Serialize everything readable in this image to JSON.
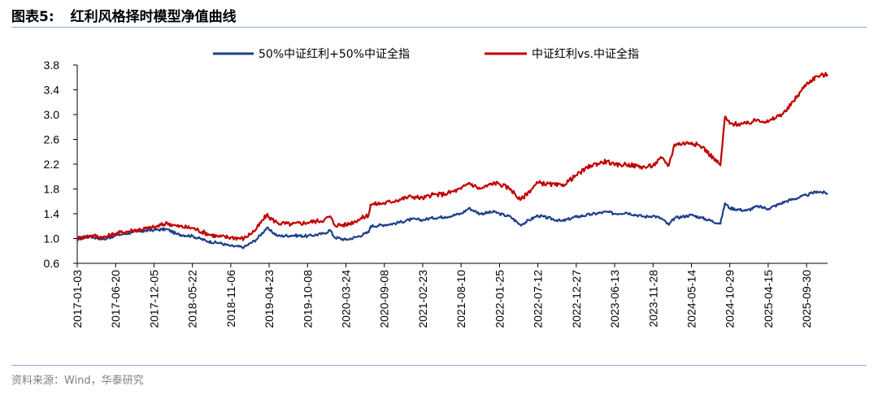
{
  "header": {
    "figure_label": "图表5:",
    "title": "红利风格择时模型净值曲线"
  },
  "footer": {
    "source": "资料来源：Wind，华泰研究"
  },
  "colors": {
    "series_1": "#1f3f8a",
    "series_2": "#c00000",
    "rule": "#8ea9c9"
  },
  "chart_data": {
    "type": "line",
    "title": "",
    "xlabel": "",
    "ylabel": "",
    "ylim": [
      0.6,
      3.8
    ],
    "yticks": [
      "0.6",
      "1.0",
      "1.4",
      "1.8",
      "2.2",
      "2.6",
      "3.0",
      "3.4",
      "3.8"
    ],
    "x_range": [
      "2017-01-03",
      "2025-12-31"
    ],
    "xticks": [
      "2017-01-03",
      "2017-06-20",
      "2017-12-05",
      "2018-05-22",
      "2018-11-06",
      "2019-04-23",
      "2019-10-08",
      "2020-03-24",
      "2020-09-08",
      "2021-02-23",
      "2021-08-10",
      "2022-01-25",
      "2022-07-12",
      "2022-12-27",
      "2023-06-13",
      "2023-11-28",
      "2024-05-14",
      "2024-10-29",
      "2025-04-15",
      "2025-09-30"
    ],
    "legend_position": "top-center",
    "grid": false,
    "series": [
      {
        "name": "50%中证红利+50%中证全指",
        "points": [
          [
            "2017-01-03",
            1.0
          ],
          [
            "2017-03-01",
            1.03
          ],
          [
            "2017-05-01",
            0.99
          ],
          [
            "2017-06-20",
            1.05
          ],
          [
            "2017-09-01",
            1.1
          ],
          [
            "2017-12-05",
            1.14
          ],
          [
            "2018-02-01",
            1.15
          ],
          [
            "2018-03-15",
            1.07
          ],
          [
            "2018-05-22",
            1.04
          ],
          [
            "2018-08-01",
            0.95
          ],
          [
            "2018-09-15",
            0.93
          ],
          [
            "2018-11-06",
            0.88
          ],
          [
            "2019-01-03",
            0.86
          ],
          [
            "2019-02-25",
            0.98
          ],
          [
            "2019-04-12",
            1.17
          ],
          [
            "2019-04-23",
            1.14
          ],
          [
            "2019-06-01",
            1.04
          ],
          [
            "2019-08-01",
            1.05
          ],
          [
            "2019-10-08",
            1.04
          ],
          [
            "2019-12-20",
            1.08
          ],
          [
            "2020-01-14",
            1.14
          ],
          [
            "2020-02-03",
            1.02
          ],
          [
            "2020-03-24",
            0.98
          ],
          [
            "2020-05-15",
            1.03
          ],
          [
            "2020-07-01",
            1.1
          ],
          [
            "2020-07-10",
            1.2
          ],
          [
            "2020-09-08",
            1.22
          ],
          [
            "2020-11-01",
            1.25
          ],
          [
            "2021-01-05",
            1.31
          ],
          [
            "2021-02-23",
            1.3
          ],
          [
            "2021-04-01",
            1.33
          ],
          [
            "2021-06-01",
            1.35
          ],
          [
            "2021-08-10",
            1.4
          ],
          [
            "2021-09-13",
            1.49
          ],
          [
            "2021-11-01",
            1.4
          ],
          [
            "2022-01-04",
            1.43
          ],
          [
            "2022-01-25",
            1.4
          ],
          [
            "2022-03-15",
            1.35
          ],
          [
            "2022-04-26",
            1.22
          ],
          [
            "2022-07-12",
            1.37
          ],
          [
            "2022-10-25",
            1.28
          ],
          [
            "2022-12-27",
            1.35
          ],
          [
            "2023-03-01",
            1.39
          ],
          [
            "2023-05-10",
            1.43
          ],
          [
            "2023-06-13",
            1.4
          ],
          [
            "2023-08-01",
            1.42
          ],
          [
            "2023-10-23",
            1.35
          ],
          [
            "2023-11-28",
            1.37
          ],
          [
            "2024-01-05",
            1.32
          ],
          [
            "2024-02-05",
            1.22
          ],
          [
            "2024-03-01",
            1.33
          ],
          [
            "2024-05-14",
            1.38
          ],
          [
            "2024-07-01",
            1.33
          ],
          [
            "2024-09-18",
            1.24
          ],
          [
            "2024-10-08",
            1.57
          ],
          [
            "2024-10-29",
            1.49
          ],
          [
            "2025-01-10",
            1.45
          ],
          [
            "2025-03-01",
            1.52
          ],
          [
            "2025-04-15",
            1.48
          ],
          [
            "2025-07-01",
            1.6
          ],
          [
            "2025-09-30",
            1.7
          ],
          [
            "2025-11-15",
            1.76
          ],
          [
            "2025-12-31",
            1.73
          ]
        ]
      },
      {
        "name": "中证红利vs.中证全指",
        "points": [
          [
            "2017-01-03",
            1.0
          ],
          [
            "2017-03-01",
            1.05
          ],
          [
            "2017-05-01",
            1.02
          ],
          [
            "2017-06-20",
            1.08
          ],
          [
            "2017-09-01",
            1.13
          ],
          [
            "2017-12-05",
            1.18
          ],
          [
            "2018-02-01",
            1.25
          ],
          [
            "2018-03-15",
            1.2
          ],
          [
            "2018-05-22",
            1.17
          ],
          [
            "2018-08-01",
            1.07
          ],
          [
            "2018-09-15",
            1.03
          ],
          [
            "2018-11-06",
            1.02
          ],
          [
            "2019-01-03",
            1.0
          ],
          [
            "2019-02-25",
            1.15
          ],
          [
            "2019-04-12",
            1.38
          ],
          [
            "2019-04-23",
            1.34
          ],
          [
            "2019-06-01",
            1.25
          ],
          [
            "2019-08-01",
            1.23
          ],
          [
            "2019-10-08",
            1.26
          ],
          [
            "2019-12-20",
            1.3
          ],
          [
            "2020-01-14",
            1.36
          ],
          [
            "2020-02-03",
            1.22
          ],
          [
            "2020-03-24",
            1.22
          ],
          [
            "2020-05-15",
            1.3
          ],
          [
            "2020-07-01",
            1.38
          ],
          [
            "2020-07-10",
            1.55
          ],
          [
            "2020-09-08",
            1.57
          ],
          [
            "2020-11-01",
            1.62
          ],
          [
            "2021-01-05",
            1.68
          ],
          [
            "2021-02-23",
            1.65
          ],
          [
            "2021-04-01",
            1.7
          ],
          [
            "2021-06-01",
            1.72
          ],
          [
            "2021-08-10",
            1.8
          ],
          [
            "2021-09-13",
            1.9
          ],
          [
            "2021-11-01",
            1.8
          ],
          [
            "2022-01-04",
            1.9
          ],
          [
            "2022-01-25",
            1.88
          ],
          [
            "2022-03-15",
            1.8
          ],
          [
            "2022-04-26",
            1.62
          ],
          [
            "2022-07-12",
            1.9
          ],
          [
            "2022-10-25",
            1.85
          ],
          [
            "2022-12-27",
            2.02
          ],
          [
            "2023-03-01",
            2.18
          ],
          [
            "2023-05-10",
            2.25
          ],
          [
            "2023-06-13",
            2.18
          ],
          [
            "2023-08-01",
            2.2
          ],
          [
            "2023-10-23",
            2.15
          ],
          [
            "2023-11-28",
            2.18
          ],
          [
            "2024-01-05",
            2.3
          ],
          [
            "2024-02-05",
            2.18
          ],
          [
            "2024-03-01",
            2.52
          ],
          [
            "2024-05-14",
            2.55
          ],
          [
            "2024-07-01",
            2.48
          ],
          [
            "2024-09-18",
            2.18
          ],
          [
            "2024-10-08",
            2.97
          ],
          [
            "2024-10-29",
            2.85
          ],
          [
            "2025-01-10",
            2.85
          ],
          [
            "2025-03-01",
            2.92
          ],
          [
            "2025-04-15",
            2.88
          ],
          [
            "2025-07-01",
            3.05
          ],
          [
            "2025-09-30",
            3.5
          ],
          [
            "2025-11-15",
            3.62
          ],
          [
            "2025-12-31",
            3.65
          ]
        ]
      }
    ]
  }
}
